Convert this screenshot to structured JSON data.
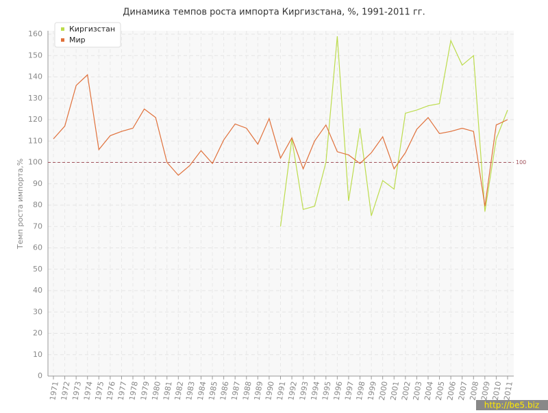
{
  "chart_data": {
    "type": "line",
    "title": "Динамика темпов роста импорта Киргизстана, %, 1991-2011 гг.",
    "y_label": "Темп роста импорта,%",
    "categories": [
      "1971",
      "1972",
      "1973",
      "1974",
      "1975",
      "1976",
      "1977",
      "1978",
      "1979",
      "1980",
      "1981",
      "1982",
      "1983",
      "1984",
      "1985",
      "1986",
      "1987",
      "1988",
      "1989",
      "1990",
      "1991",
      "1992",
      "1993",
      "1994",
      "1995",
      "1996",
      "1997",
      "1998",
      "1999",
      "2000",
      "2001",
      "2002",
      "2003",
      "2004",
      "2005",
      "2006",
      "2007",
      "2008",
      "2009",
      "2010",
      "2011"
    ],
    "series": [
      {
        "name": "Киргизстан",
        "color": "#bcdc4c",
        "values": [
          null,
          null,
          null,
          null,
          null,
          null,
          null,
          null,
          null,
          null,
          null,
          null,
          null,
          null,
          null,
          null,
          null,
          null,
          null,
          null,
          70,
          111,
          78,
          79.5,
          100,
          159,
          82,
          116,
          75,
          91.5,
          87.5,
          123,
          124.5,
          126.5,
          127.5,
          157,
          145.5,
          150,
          77,
          111,
          124.5
        ]
      },
      {
        "name": "Мир",
        "color": "#e0703a",
        "values": [
          111,
          117,
          136,
          141,
          106,
          112.5,
          114.5,
          116,
          125,
          121,
          100,
          94,
          98.5,
          105.5,
          99.5,
          110.5,
          118,
          116,
          108.5,
          120.5,
          102,
          111.5,
          97,
          110,
          117.5,
          105,
          103.5,
          99.5,
          104.5,
          112,
          97,
          104.5,
          115.5,
          121,
          113.5,
          114.5,
          116,
          114.5,
          79.5,
          117.5,
          120
        ]
      }
    ],
    "ylim": [
      0,
      160
    ],
    "yticks": [
      0,
      10,
      20,
      30,
      40,
      50,
      60,
      70,
      80,
      90,
      100,
      110,
      120,
      130,
      140,
      150,
      160
    ],
    "grid": true,
    "legend": "top-left",
    "reference_line": 100,
    "reference_color": "#a0505a",
    "watermark": "http://be5.biz"
  }
}
